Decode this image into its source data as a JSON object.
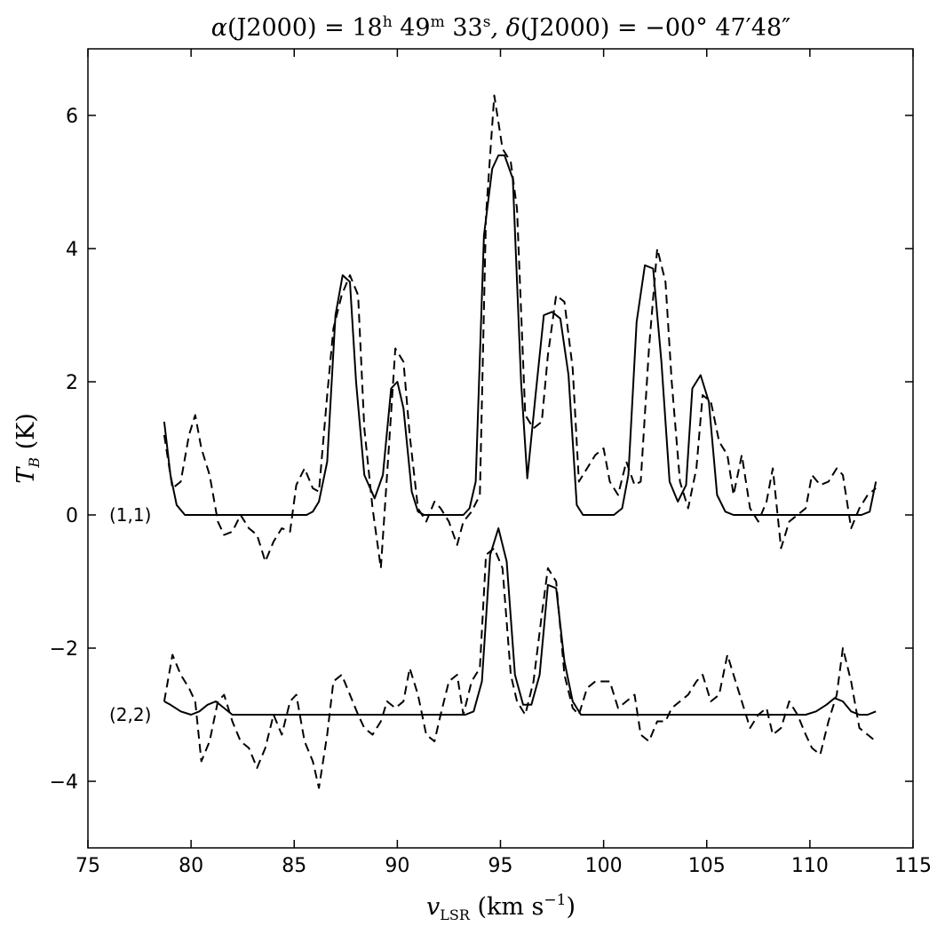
{
  "chart_data": {
    "type": "line",
    "title": {
      "alpha_sym": "α",
      "alpha_text": "(J2000) = 18",
      "h": "h",
      "min_val": " 49",
      "m": "m",
      "sec_val": " 33",
      "s": "s",
      "delta_sym": ", δ",
      "delta_text": "(J2000) = −00° 47′48″"
    },
    "xlabel": {
      "v": "v",
      "sub": "LSR",
      "rest": " (km s",
      "sup": "−1",
      "close": ")"
    },
    "ylabel": {
      "t": "T",
      "sub": "B",
      "rest": " (K)"
    },
    "xlim": [
      75,
      115
    ],
    "ylim": [
      -5,
      7
    ],
    "x_ticks": [
      "75",
      "80",
      "85",
      "90",
      "95",
      "100",
      "105",
      "110",
      "115"
    ],
    "y_ticks": [
      "−4",
      "−2",
      "0",
      "2",
      "4",
      "6"
    ],
    "grid": false,
    "transition_labels": [
      {
        "text": "(1,1)",
        "y": 0
      },
      {
        "text": "(2,2)",
        "y": -3
      }
    ],
    "series": [
      {
        "style": "solid",
        "x": [
          78.7,
          79.0,
          79.3,
          79.7,
          80.3,
          81,
          82,
          83,
          84,
          85,
          85.6,
          85.9,
          86.2,
          86.6,
          87.0,
          87.35,
          87.7,
          88.0,
          88.4,
          88.9,
          89.3,
          89.7,
          90.0,
          90.3,
          90.7,
          91.0,
          91.3,
          91.7,
          92.0,
          92.4,
          92.8,
          93.2,
          93.5,
          93.8,
          94.2,
          94.6,
          94.9,
          95.2,
          95.6,
          96.0,
          96.3,
          96.7,
          97.1,
          97.5,
          97.9,
          98.3,
          98.7,
          99.0,
          99.3,
          99.7,
          100.1,
          100.5,
          100.9,
          101.2,
          101.6,
          102.0,
          102.4,
          102.8,
          103.2,
          103.6,
          104.0,
          104.3,
          104.7,
          105.1,
          105.5,
          105.9,
          106.3,
          106.7,
          107.2,
          108,
          109,
          110,
          111,
          112,
          112.5,
          112.9,
          113.2
        ],
        "y": [
          1.4,
          0.6,
          0.15,
          0.0,
          0.0,
          0.0,
          0.0,
          0.0,
          0.0,
          0.0,
          0.0,
          0.05,
          0.2,
          0.8,
          3.0,
          3.6,
          3.5,
          2.0,
          0.6,
          0.25,
          0.6,
          1.9,
          2.0,
          1.6,
          0.35,
          0.05,
          0.0,
          0.0,
          0.0,
          0.0,
          0.0,
          0.0,
          0.1,
          0.5,
          4.2,
          5.2,
          5.4,
          5.4,
          5.05,
          2.0,
          0.55,
          1.8,
          3.0,
          3.05,
          2.95,
          2.1,
          0.15,
          0.0,
          0.0,
          0.0,
          0.0,
          0.0,
          0.1,
          0.6,
          2.9,
          3.75,
          3.7,
          2.3,
          0.5,
          0.2,
          0.45,
          1.9,
          2.1,
          1.7,
          0.3,
          0.05,
          0.0,
          0.0,
          0.0,
          0.0,
          0.0,
          0.0,
          0.0,
          0.0,
          0.0,
          0.05,
          0.5
        ]
      },
      {
        "style": "dashed",
        "x": [
          78.7,
          79.1,
          79.5,
          79.9,
          80.2,
          80.5,
          80.9,
          81.3,
          81.6,
          82.0,
          82.4,
          82.8,
          83.2,
          83.6,
          84.0,
          84.4,
          84.8,
          85.1,
          85.5,
          85.9,
          86.2,
          86.6,
          86.9,
          87.3,
          87.7,
          88.1,
          88.4,
          88.8,
          89.2,
          89.5,
          89.9,
          90.3,
          90.6,
          91.0,
          91.4,
          91.8,
          92.1,
          92.5,
          92.9,
          93.2,
          93.6,
          94.0,
          94.3,
          94.7,
          95.1,
          95.5,
          95.8,
          96.2,
          96.6,
          97.0,
          97.3,
          97.7,
          98.1,
          98.5,
          98.8,
          99.2,
          99.6,
          100.0,
          100.3,
          100.7,
          101.1,
          101.5,
          101.8,
          102.2,
          102.6,
          103.0,
          103.3,
          103.7,
          104.1,
          104.5,
          104.8,
          105.2,
          105.6,
          106.0,
          106.3,
          106.7,
          107.1,
          107.5,
          107.9,
          108.2,
          108.6,
          109.0,
          109.4,
          109.8,
          110.1,
          110.5,
          110.9,
          111.3,
          111.6,
          112.0,
          112.4,
          112.8,
          113.2
        ],
        "y": [
          1.2,
          0.4,
          0.5,
          1.2,
          1.5,
          1.0,
          0.6,
          -0.1,
          -0.3,
          -0.25,
          0.0,
          -0.2,
          -0.3,
          -0.7,
          -0.4,
          -0.2,
          -0.25,
          0.45,
          0.7,
          0.4,
          0.35,
          1.8,
          2.8,
          3.3,
          3.6,
          3.3,
          1.3,
          0.1,
          -0.8,
          0.6,
          2.5,
          2.3,
          1.2,
          0.1,
          -0.1,
          0.2,
          0.1,
          -0.1,
          -0.45,
          -0.1,
          0.05,
          0.3,
          4.5,
          6.3,
          5.5,
          5.3,
          4.6,
          1.5,
          1.3,
          1.4,
          2.4,
          3.3,
          3.2,
          2.2,
          0.5,
          0.7,
          0.9,
          1.0,
          0.5,
          0.3,
          0.8,
          0.45,
          0.5,
          2.5,
          4.0,
          3.5,
          2.0,
          0.5,
          0.1,
          0.7,
          1.8,
          1.7,
          1.1,
          0.9,
          0.3,
          0.9,
          0.1,
          -0.1,
          0.2,
          0.7,
          -0.5,
          -0.1,
          0.0,
          0.1,
          0.6,
          0.45,
          0.5,
          0.7,
          0.6,
          -0.2,
          0.1,
          0.3,
          0.4
        ]
      },
      {
        "style": "solid",
        "x": [
          78.7,
          79.0,
          79.5,
          80.0,
          80.4,
          80.8,
          81.2,
          81.6,
          82.0,
          82.5,
          83,
          84,
          85,
          86,
          87,
          88,
          89,
          90,
          91,
          92,
          92.8,
          93.3,
          93.7,
          94.1,
          94.5,
          94.9,
          95.3,
          95.7,
          96.1,
          96.5,
          96.9,
          97.3,
          97.7,
          98.1,
          98.5,
          98.9,
          99.3,
          100,
          101,
          102,
          103,
          104,
          105,
          106,
          107,
          108,
          109,
          109.8,
          110.3,
          110.8,
          111.2,
          111.6,
          112.0,
          112.4,
          112.8,
          113.2
        ],
        "y": [
          -2.8,
          -2.85,
          -2.95,
          -3.0,
          -2.95,
          -2.85,
          -2.8,
          -2.9,
          -3.0,
          -3.0,
          -3.0,
          -3.0,
          -3.0,
          -3.0,
          -3.0,
          -3.0,
          -3.0,
          -3.0,
          -3.0,
          -3.0,
          -3.0,
          -3.0,
          -2.95,
          -2.5,
          -0.6,
          -0.2,
          -0.7,
          -2.4,
          -2.85,
          -2.85,
          -2.4,
          -1.05,
          -1.1,
          -2.2,
          -2.8,
          -3.0,
          -3.0,
          -3.0,
          -3.0,
          -3.0,
          -3.0,
          -3.0,
          -3.0,
          -3.0,
          -3.0,
          -3.0,
          -3.0,
          -3.0,
          -2.95,
          -2.85,
          -2.75,
          -2.8,
          -2.95,
          -3.0,
          -3.0,
          -2.95
        ]
      },
      {
        "style": "dashed",
        "x": [
          78.7,
          79.1,
          79.5,
          79.9,
          80.2,
          80.5,
          80.9,
          81.3,
          81.6,
          82.0,
          82.4,
          82.8,
          83.2,
          83.6,
          84.0,
          84.4,
          84.8,
          85.1,
          85.5,
          85.9,
          86.2,
          86.6,
          86.9,
          87.3,
          87.7,
          88.1,
          88.4,
          88.8,
          89.2,
          89.5,
          89.9,
          90.3,
          90.6,
          91.0,
          91.4,
          91.8,
          92.1,
          92.5,
          92.9,
          93.2,
          93.6,
          94.0,
          94.3,
          94.7,
          95.1,
          95.5,
          95.8,
          96.2,
          96.6,
          97.0,
          97.3,
          97.7,
          98.1,
          98.5,
          98.8,
          99.2,
          99.6,
          100.0,
          100.3,
          100.7,
          101.1,
          101.5,
          101.8,
          102.2,
          102.6,
          103.0,
          103.3,
          103.7,
          104.1,
          104.5,
          104.8,
          105.2,
          105.6,
          106.0,
          106.3,
          106.7,
          107.1,
          107.5,
          107.9,
          108.2,
          108.6,
          109.0,
          109.4,
          109.8,
          110.1,
          110.5,
          110.9,
          111.3,
          111.6,
          112.0,
          112.4,
          112.8,
          113.2
        ],
        "y": [
          -2.8,
          -2.1,
          -2.4,
          -2.6,
          -2.8,
          -3.7,
          -3.4,
          -2.8,
          -2.7,
          -3.1,
          -3.4,
          -3.5,
          -3.8,
          -3.5,
          -3.0,
          -3.3,
          -2.8,
          -2.7,
          -3.4,
          -3.7,
          -4.1,
          -3.3,
          -2.5,
          -2.4,
          -2.7,
          -3.0,
          -3.2,
          -3.3,
          -3.1,
          -2.8,
          -2.9,
          -2.8,
          -2.3,
          -2.7,
          -3.3,
          -3.4,
          -3.0,
          -2.5,
          -2.4,
          -3.0,
          -2.5,
          -2.3,
          -0.6,
          -0.5,
          -0.8,
          -2.4,
          -2.8,
          -3.0,
          -2.5,
          -1.5,
          -0.8,
          -1.0,
          -2.4,
          -2.9,
          -3.0,
          -2.6,
          -2.5,
          -2.5,
          -2.5,
          -2.9,
          -2.8,
          -2.7,
          -3.3,
          -3.4,
          -3.1,
          -3.1,
          -2.9,
          -2.8,
          -2.7,
          -2.5,
          -2.4,
          -2.8,
          -2.7,
          -2.1,
          -2.4,
          -2.8,
          -3.2,
          -3.0,
          -2.9,
          -3.3,
          -3.2,
          -2.8,
          -3.0,
          -3.3,
          -3.5,
          -3.6,
          -3.1,
          -2.7,
          -2.0,
          -2.5,
          -3.2,
          -3.3,
          -3.4
        ]
      }
    ]
  }
}
